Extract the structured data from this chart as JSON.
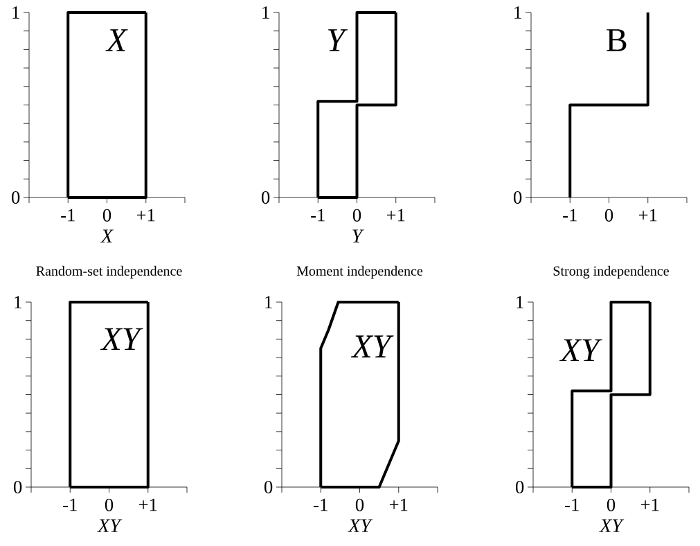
{
  "chart_data": [
    {
      "type": "line",
      "xlabel": "X",
      "annotations": [
        "X"
      ],
      "xlim": [
        -2,
        2
      ],
      "ylim": [
        0,
        1
      ],
      "xticks": [
        {
          "value": -2,
          "label": null
        },
        -1,
        0,
        {
          "value": 1,
          "label": "+1"
        },
        {
          "value": 2,
          "label": null
        }
      ],
      "yticks": [
        0,
        {
          "value": 0.1,
          "label": null
        },
        {
          "value": 0.2,
          "label": null
        },
        {
          "value": 0.3,
          "label": null
        },
        {
          "value": 0.4,
          "label": null
        },
        {
          "value": 0.5,
          "label": null
        },
        {
          "value": 0.6,
          "label": null
        },
        {
          "value": 0.7,
          "label": null
        },
        {
          "value": 0.8,
          "label": null
        },
        {
          "value": 0.9,
          "label": null
        },
        1
      ],
      "series": [
        {
          "color": "#000000",
          "x": [
            -1,
            -1,
            1
          ],
          "values": [
            0,
            1,
            1
          ]
        },
        {
          "color": "#000000",
          "x": [
            -1,
            1,
            1
          ],
          "values": [
            0,
            0,
            1
          ]
        }
      ]
    },
    {
      "type": "line",
      "xlabel": "Y",
      "annotations": [
        "Y"
      ],
      "xlim": [
        -2,
        2
      ],
      "ylim": [
        0,
        1
      ],
      "xticks": [
        {
          "value": -2,
          "label": null
        },
        -1,
        0,
        {
          "value": 1,
          "label": "+1"
        },
        {
          "value": 2,
          "label": null
        }
      ],
      "yticks": [
        0,
        {
          "value": 0.1,
          "label": null
        },
        {
          "value": 0.2,
          "label": null
        },
        {
          "value": 0.3,
          "label": null
        },
        {
          "value": 0.4,
          "label": null
        },
        {
          "value": 0.5,
          "label": null
        },
        {
          "value": 0.6,
          "label": null
        },
        {
          "value": 0.7,
          "label": null
        },
        {
          "value": 0.8,
          "label": null
        },
        {
          "value": 0.9,
          "label": null
        },
        1
      ],
      "series": [
        {
          "color": "#000000",
          "x": [
            -1,
            -1,
            0,
            0,
            1
          ],
          "values": [
            0,
            0.52,
            0.52,
            1,
            1
          ]
        },
        {
          "color": "#000000",
          "x": [
            -1,
            0,
            0,
            1,
            1
          ],
          "values": [
            0,
            0,
            0.5,
            0.5,
            1
          ]
        }
      ]
    },
    {
      "type": "line",
      "annotations": [
        "B"
      ],
      "xlim": [
        -2,
        2
      ],
      "ylim": [
        0,
        1
      ],
      "xticks": [
        {
          "value": -2,
          "label": null
        },
        -1,
        0,
        {
          "value": 1,
          "label": "+1"
        },
        {
          "value": 2,
          "label": null
        }
      ],
      "yticks": [
        0,
        {
          "value": 0.1,
          "label": null
        },
        {
          "value": 0.2,
          "label": null
        },
        {
          "value": 0.3,
          "label": null
        },
        {
          "value": 0.4,
          "label": null
        },
        {
          "value": 0.5,
          "label": null
        },
        {
          "value": 0.6,
          "label": null
        },
        {
          "value": 0.7,
          "label": null
        },
        {
          "value": 0.8,
          "label": null
        },
        {
          "value": 0.9,
          "label": null
        },
        1
      ],
      "series": [
        {
          "color": "#000000",
          "x": [
            -1,
            -1,
            1,
            1
          ],
          "values": [
            0,
            0.5,
            0.5,
            1
          ]
        }
      ]
    },
    {
      "type": "line",
      "title": "Random-set independence",
      "xlabel": "XY",
      "annotations": [
        "XY"
      ],
      "xlim": [
        -2,
        2
      ],
      "ylim": [
        0,
        1
      ],
      "xticks": [
        {
          "value": -2,
          "label": null
        },
        -1,
        0,
        {
          "value": 1,
          "label": "+1"
        },
        {
          "value": 2,
          "label": null
        }
      ],
      "yticks": [
        0,
        {
          "value": 0.1,
          "label": null
        },
        {
          "value": 0.2,
          "label": null
        },
        {
          "value": 0.3,
          "label": null
        },
        {
          "value": 0.4,
          "label": null
        },
        {
          "value": 0.5,
          "label": null
        },
        {
          "value": 0.6,
          "label": null
        },
        {
          "value": 0.7,
          "label": null
        },
        {
          "value": 0.8,
          "label": null
        },
        {
          "value": 0.9,
          "label": null
        },
        1
      ],
      "series": [
        {
          "color": "#000000",
          "x": [
            -1,
            -1,
            1
          ],
          "values": [
            0,
            1,
            1
          ]
        },
        {
          "color": "#000000",
          "x": [
            -1,
            1,
            1
          ],
          "values": [
            0,
            0,
            1
          ]
        }
      ]
    },
    {
      "type": "line",
      "title": "Moment independence",
      "xlabel": "XY",
      "annotations": [
        "XY"
      ],
      "xlim": [
        -2,
        2
      ],
      "ylim": [
        0,
        1
      ],
      "xticks": [
        {
          "value": -2,
          "label": null
        },
        -1,
        0,
        {
          "value": 1,
          "label": "+1"
        },
        {
          "value": 2,
          "label": null
        }
      ],
      "yticks": [
        0,
        {
          "value": 0.1,
          "label": null
        },
        {
          "value": 0.2,
          "label": null
        },
        {
          "value": 0.3,
          "label": null
        },
        {
          "value": 0.4,
          "label": null
        },
        {
          "value": 0.5,
          "label": null
        },
        {
          "value": 0.6,
          "label": null
        },
        {
          "value": 0.7,
          "label": null
        },
        {
          "value": 0.8,
          "label": null
        },
        {
          "value": 0.9,
          "label": null
        },
        1
      ],
      "series": [
        {
          "color": "#000000",
          "x": [
            -1,
            -1,
            -0.8,
            -0.55,
            1
          ],
          "values": [
            0,
            0.75,
            0.85,
            1,
            1
          ]
        },
        {
          "color": "#000000",
          "x": [
            -1,
            0.5,
            0.7,
            1,
            1
          ],
          "values": [
            0,
            0,
            0.1,
            0.25,
            1
          ]
        }
      ]
    },
    {
      "type": "line",
      "title": "Strong independence",
      "xlabel": "XY",
      "annotations": [
        "XY"
      ],
      "xlim": [
        -2,
        2
      ],
      "ylim": [
        0,
        1
      ],
      "xticks": [
        {
          "value": -2,
          "label": null
        },
        -1,
        0,
        {
          "value": 1,
          "label": "+1"
        },
        {
          "value": 2,
          "label": null
        }
      ],
      "yticks": [
        0,
        {
          "value": 0.1,
          "label": null
        },
        {
          "value": 0.2,
          "label": null
        },
        {
          "value": 0.3,
          "label": null
        },
        {
          "value": 0.4,
          "label": null
        },
        {
          "value": 0.5,
          "label": null
        },
        {
          "value": 0.6,
          "label": null
        },
        {
          "value": 0.7,
          "label": null
        },
        {
          "value": 0.8,
          "label": null
        },
        {
          "value": 0.9,
          "label": null
        },
        1
      ],
      "series": [
        {
          "color": "#000000",
          "x": [
            -1,
            -1,
            0,
            0,
            1
          ],
          "values": [
            0,
            0.52,
            0.52,
            1,
            1
          ]
        },
        {
          "color": "#000000",
          "x": [
            -1,
            0,
            0,
            1,
            1
          ],
          "values": [
            0,
            0,
            0.5,
            0.5,
            1
          ]
        }
      ]
    }
  ]
}
